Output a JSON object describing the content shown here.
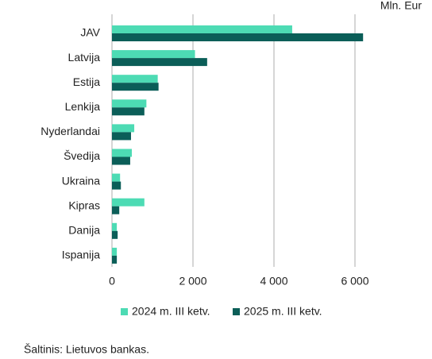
{
  "chart_data": {
    "type": "hbar",
    "unit_label": "Mln. Eur",
    "categories": [
      "JAV",
      "Latvija",
      "Estija",
      "Lenkija",
      "Nyderlandai",
      "Švedija",
      "Ukraina",
      "Kipras",
      "Danija",
      "Ispanija"
    ],
    "series": [
      {
        "name": "2024 m. III ketv.",
        "color": "#4ddbb4",
        "values": [
          4450,
          2050,
          1130,
          850,
          550,
          490,
          200,
          800,
          120,
          120
        ]
      },
      {
        "name": "2025 m. III ketv.",
        "color": "#0b5e58",
        "values": [
          6200,
          2350,
          1150,
          800,
          470,
          450,
          220,
          180,
          140,
          120
        ]
      }
    ],
    "xlim": [
      0,
      6300
    ],
    "xticks": [
      0,
      {
        "value": 2000,
        "label": "2 000"
      },
      {
        "value": 4000,
        "label": "4 000"
      },
      {
        "value": 6000,
        "label": "6 000"
      }
    ],
    "grid": true,
    "source": "Šaltinis: Lietuvos bankas."
  }
}
